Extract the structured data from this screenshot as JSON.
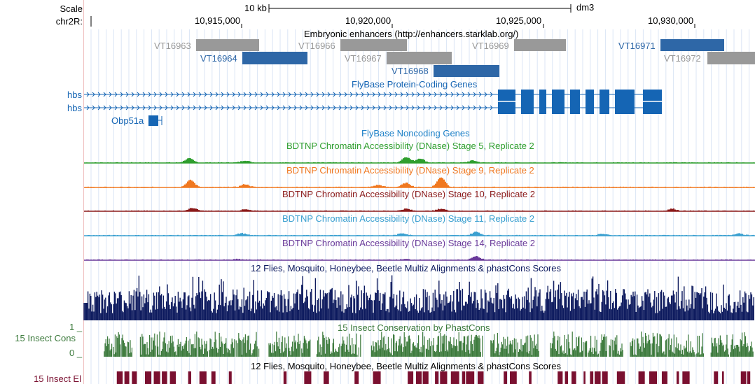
{
  "header": {
    "scale_label": "Scale",
    "scale_bar": "10 kb",
    "assembly": "dm3",
    "chrom_label": "chr2R:",
    "positions": [
      "10,915,000",
      "10,920,000",
      "10,925,000",
      "10,930,000"
    ]
  },
  "tracks": {
    "enhancers": {
      "title": "Embryonic enhancers (http://enhancers.starklab.org/)",
      "items": [
        {
          "name": "VT16963",
          "color": "#999999"
        },
        {
          "name": "VT16964",
          "color": "#2e67a7"
        },
        {
          "name": "VT16966",
          "color": "#999999"
        },
        {
          "name": "VT16967",
          "color": "#999999"
        },
        {
          "name": "VT16968",
          "color": "#2e67a7"
        },
        {
          "name": "VT16969",
          "color": "#999999"
        },
        {
          "name": "VT16971",
          "color": "#2e67a7"
        },
        {
          "name": "VT16972",
          "color": "#999999"
        }
      ]
    },
    "coding_genes": {
      "title": "FlyBase Protein-Coding Genes",
      "genes": [
        "hbs",
        "hbs",
        "Obp51a"
      ],
      "color": "#1565b4"
    },
    "noncoding": {
      "title": "FlyBase Noncoding Genes",
      "color": "#1f82c8"
    },
    "dnase": [
      {
        "title": "BDTNP Chromatin Accessibility (DNase) Stage 5, Replicate 2",
        "color": "#2e9e2e"
      },
      {
        "title": "BDTNP Chromatin Accessibility (DNase) Stage 9, Replicate 2",
        "color": "#f07820"
      },
      {
        "title": "BDTNP Chromatin Accessibility (DNase) Stage 10, Replicate 2",
        "color": "#8b1a1a"
      },
      {
        "title": "BDTNP Chromatin Accessibility (DNase) Stage 11, Replicate 2",
        "color": "#3aa0d0"
      },
      {
        "title": "BDTNP Chromatin Accessibility (DNase) Stage 14, Replicate 2",
        "color": "#6a3a9a"
      }
    ],
    "multiz": {
      "title": "12 Flies, Mosquito, Honeybee, Beetle Multiz Alignments & phastCons Scores",
      "color": "#0d1a5e"
    },
    "phastcons": {
      "title": "15 Insect Conservation by PhastCons",
      "left_label": "15 Insect Cons",
      "axis_top": "1 _",
      "axis_bottom": "0 _",
      "color": "#3c7a3c"
    },
    "elements": {
      "title": "12 Flies, Mosquito, Honeybee, Beetle Multiz Alignments & phastCons Scores",
      "left_label": "15 Insect El",
      "color": "#7a1030"
    }
  }
}
